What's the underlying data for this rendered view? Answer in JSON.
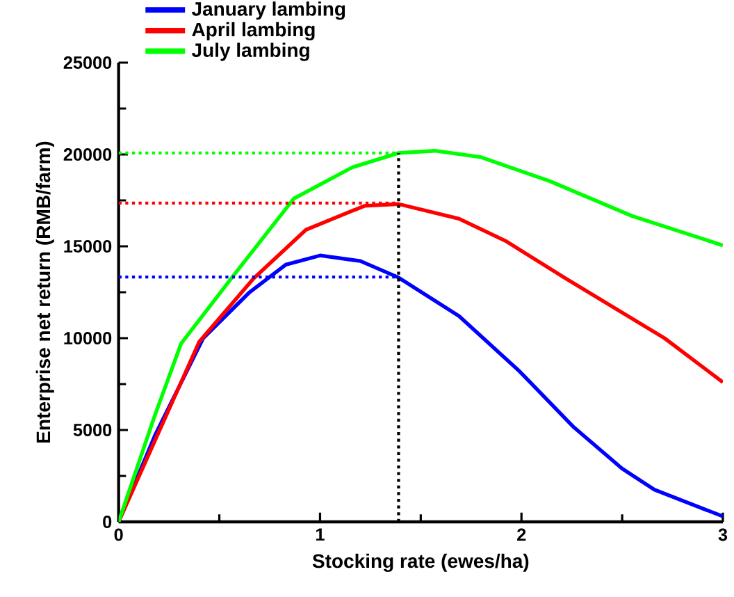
{
  "chart_data": {
    "type": "line",
    "xlabel": "Stocking rate (ewes/ha)",
    "ylabel": "Enterprise net return (RMB/farm)",
    "xlim": [
      0,
      3
    ],
    "ylim": [
      0,
      25000
    ],
    "xticks": [
      0,
      1,
      2,
      3
    ],
    "yticks": [
      0,
      5000,
      10000,
      15000,
      20000,
      25000
    ],
    "legend": "top left",
    "grid": false,
    "line_style": "solid",
    "series": [
      {
        "name": "January lambing",
        "color": "#0000ff",
        "x": [
          0,
          0.18,
          0.42,
          0.65,
          0.83,
          1.0,
          1.2,
          1.39,
          1.69,
          1.99,
          2.26,
          2.5,
          2.66,
          3.0
        ],
        "values": [
          0,
          4700,
          10000,
          12500,
          14000,
          14500,
          14200,
          13300,
          11200,
          8200,
          5150,
          2900,
          1750,
          300
        ]
      },
      {
        "name": "April lambing",
        "color": "#ff0000",
        "x": [
          0,
          0.2,
          0.4,
          0.67,
          0.93,
          1.22,
          1.39,
          1.69,
          1.92,
          2.22,
          2.71,
          3.0
        ],
        "values": [
          0,
          4900,
          9800,
          13250,
          15900,
          17200,
          17300,
          16500,
          15300,
          13250,
          10000,
          7600
        ]
      },
      {
        "name": "July lambing",
        "color": "#00ff00",
        "x": [
          0,
          0.18,
          0.31,
          0.57,
          0.87,
          1.16,
          1.39,
          1.57,
          1.8,
          2.14,
          2.55,
          3.0
        ],
        "values": [
          0,
          5800,
          9700,
          13400,
          17600,
          19300,
          20080,
          20200,
          19850,
          18550,
          16650,
          15050
        ]
      },
      {
        "color": "#0000ff",
        "line_style": "dotted",
        "x": [
          0,
          1.39
        ],
        "values": [
          13330,
          13330
        ]
      },
      {
        "color": "#ff0000",
        "line_style": "dotted",
        "x": [
          0,
          1.39
        ],
        "values": [
          17350,
          17350
        ]
      },
      {
        "color": "#00ff00",
        "line_style": "dotted",
        "x": [
          0,
          1.39
        ],
        "values": [
          20080,
          20080
        ]
      },
      {
        "color": "#000000",
        "line_style": "dotted",
        "x": [
          1.39,
          1.39
        ],
        "values": [
          0,
          20080
        ]
      }
    ]
  }
}
